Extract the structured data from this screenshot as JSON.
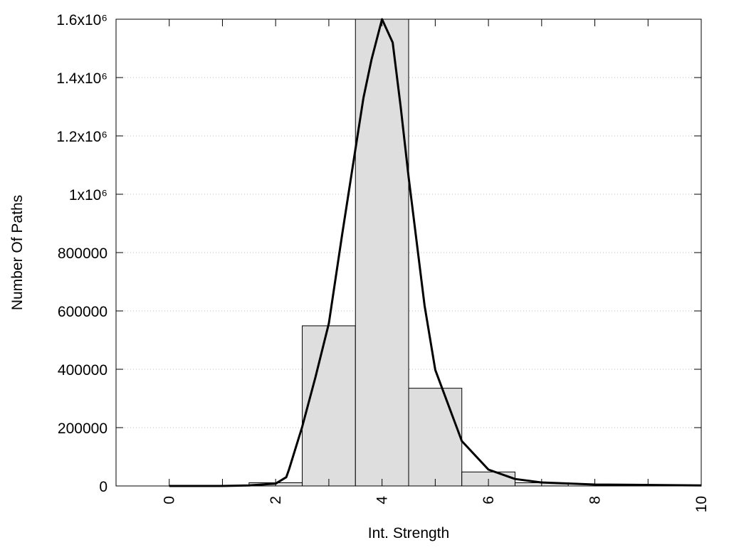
{
  "chart_data": {
    "type": "bar",
    "title": "",
    "xlabel": "Int. Strength",
    "ylabel": "Number Of Paths",
    "xlim": [
      -1,
      10
    ],
    "ylim": [
      0,
      1600000
    ],
    "grid": "horizontal-dotted",
    "x_ticks": [
      0,
      1,
      2,
      3,
      4,
      5,
      6,
      7,
      8,
      9,
      10
    ],
    "x_tick_labels": [
      {
        "value": 0,
        "label": "0"
      },
      {
        "value": 2,
        "label": "2"
      },
      {
        "value": 4,
        "label": "4"
      },
      {
        "value": 6,
        "label": "6"
      },
      {
        "value": 8,
        "label": "8"
      },
      {
        "value": 10,
        "label": "10"
      }
    ],
    "y_tick_labels": [
      {
        "value": 0,
        "label": "0"
      },
      {
        "value": 200000,
        "label": "200000"
      },
      {
        "value": 400000,
        "label": "400000"
      },
      {
        "value": 600000,
        "label": "600000"
      },
      {
        "value": 800000,
        "label": "800000"
      },
      {
        "value": 1000000,
        "label": "1x10⁶"
      },
      {
        "value": 1200000,
        "label": "1.2x10⁶"
      },
      {
        "value": 1400000,
        "label": "1.4x10⁶"
      },
      {
        "value": 1600000,
        "label": "1.6x10⁶"
      }
    ],
    "bars": {
      "width": 1,
      "color": "#dedede",
      "x": [
        2,
        3,
        4,
        5,
        6,
        7
      ],
      "values": [
        11000,
        549000,
        1600000,
        335000,
        48000,
        11000
      ]
    },
    "curve": {
      "color": "#000000",
      "x": [
        0,
        1,
        1.5,
        2,
        2.2,
        2.25,
        2.5,
        2.75,
        3,
        3.25,
        3.5,
        3.65,
        3.8,
        4,
        4.2,
        4.35,
        4.5,
        4.8,
        5,
        5.5,
        6,
        6.5,
        7,
        8,
        10
      ],
      "y": [
        0,
        0,
        2000,
        8000,
        30000,
        56000,
        203000,
        374000,
        557000,
        862000,
        1155000,
        1330000,
        1460000,
        1600000,
        1520000,
        1300000,
        1058000,
        618000,
        398000,
        154000,
        56000,
        24000,
        12000,
        5000,
        2000
      ]
    }
  }
}
